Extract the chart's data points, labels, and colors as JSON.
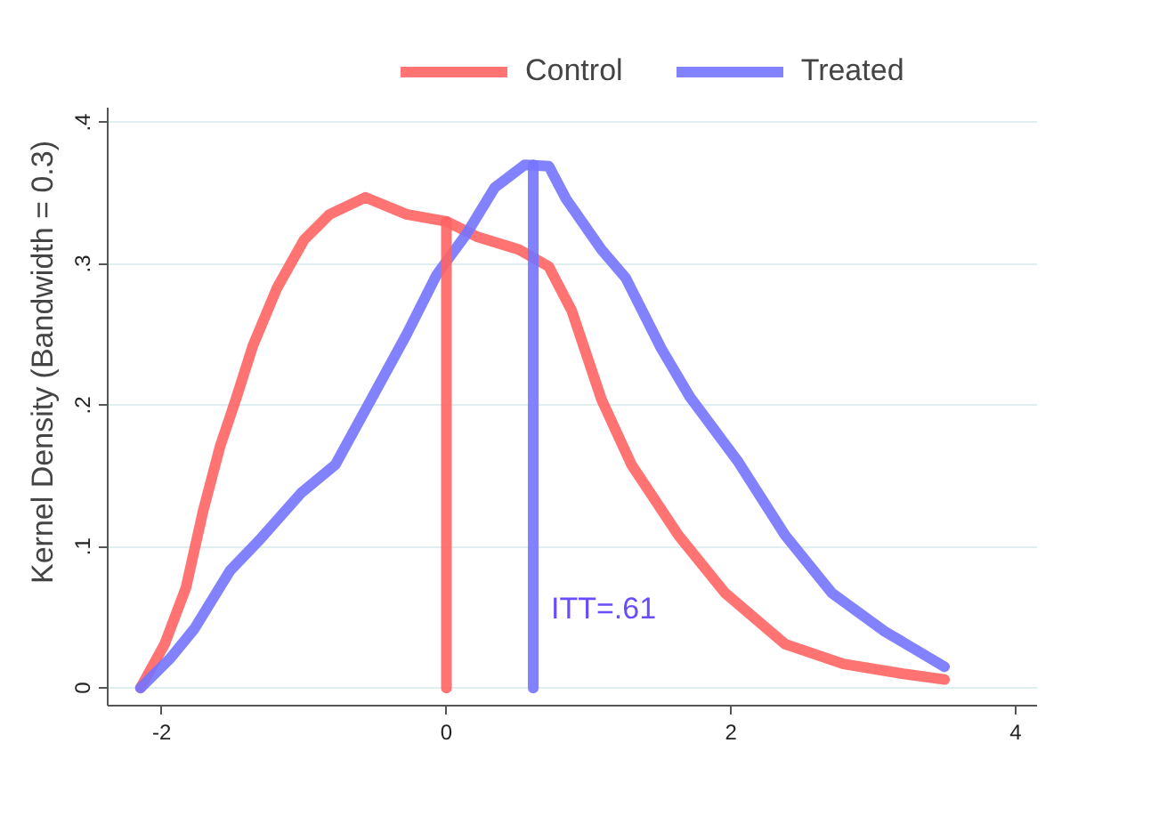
{
  "chart_data": {
    "type": "line",
    "ylabel": "Kernel Density (Bandwidth = 0.3)",
    "xlim": [
      -2.38,
      4.15
    ],
    "ylim": [
      -0.0125,
      0.41
    ],
    "xticks": [
      -2,
      0,
      2,
      4
    ],
    "yticks": [
      {
        "value": 0,
        "label": "0"
      },
      {
        "value": 0.1,
        "label": ".1"
      },
      {
        "value": 0.2,
        "label": ".2"
      },
      {
        "value": 0.3,
        "label": ".3"
      },
      {
        "value": 0.4,
        "label": ".4"
      }
    ],
    "grid": "y",
    "legend": "top",
    "line_style": "solid",
    "series": [
      {
        "name": "Control",
        "color": "#ff6464",
        "x": [
          -2.15,
          -1.98,
          -1.83,
          -1.71,
          -1.59,
          -1.48,
          -1.36,
          -1.19,
          -1.0,
          -0.82,
          -0.57,
          -0.28,
          0.0,
          0.22,
          0.51,
          0.72,
          0.88,
          1.09,
          1.3,
          1.63,
          1.96,
          2.38,
          2.79,
          3.21,
          3.5
        ],
        "values": [
          0.0,
          0.031,
          0.071,
          0.125,
          0.171,
          0.204,
          0.242,
          0.283,
          0.317,
          0.335,
          0.347,
          0.335,
          0.33,
          0.319,
          0.31,
          0.298,
          0.267,
          0.204,
          0.158,
          0.108,
          0.067,
          0.031,
          0.017,
          0.01,
          0.006
        ]
      },
      {
        "name": "Treated",
        "color": "#7474ff",
        "x": [
          -2.15,
          -1.94,
          -1.77,
          -1.52,
          -1.32,
          -1.02,
          -0.78,
          -0.53,
          -0.28,
          -0.07,
          0.14,
          0.34,
          0.55,
          0.72,
          0.84,
          1.09,
          1.26,
          1.51,
          1.71,
          2.05,
          2.38,
          2.71,
          3.08,
          3.5
        ],
        "values": [
          0.0,
          0.021,
          0.042,
          0.083,
          0.104,
          0.138,
          0.158,
          0.204,
          0.25,
          0.292,
          0.321,
          0.354,
          0.37,
          0.369,
          0.346,
          0.31,
          0.29,
          0.24,
          0.206,
          0.16,
          0.108,
          0.067,
          0.04,
          0.015
        ]
      },
      {
        "color": "#ff6464",
        "x": [
          0,
          0
        ],
        "values": [
          0,
          0.33
        ]
      },
      {
        "color": "#7474ff",
        "x": [
          0.61,
          0.61
        ],
        "values": [
          0,
          0.37
        ]
      }
    ],
    "annotations": [
      "ITT=.61"
    ]
  }
}
